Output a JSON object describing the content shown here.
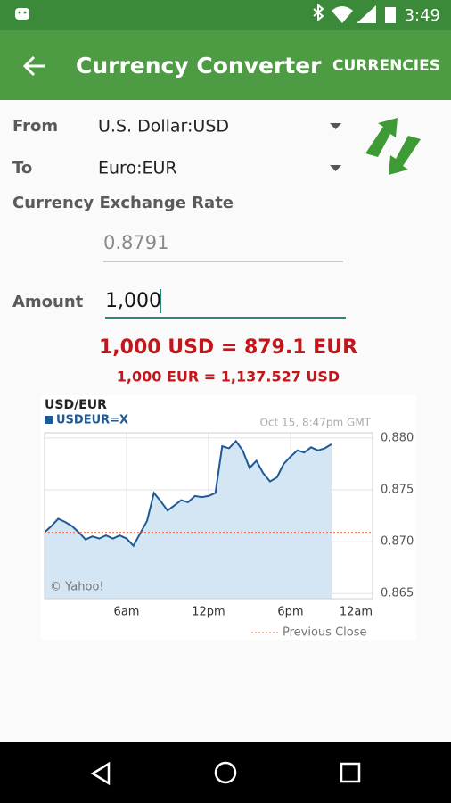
{
  "status_bar": {
    "time": "3:49"
  },
  "app_bar": {
    "title": "Currency Converter",
    "action": "CURRENCIES"
  },
  "form": {
    "from": {
      "label": "From",
      "value": "U.S. Dollar:USD"
    },
    "to": {
      "label": "To",
      "value": "Euro:EUR"
    },
    "rate_label": "Currency Exchange Rate",
    "rate_value": "0.8791",
    "amount_label": "Amount",
    "amount_value": "1,000"
  },
  "results": [
    "1,000 USD = 879.1 EUR",
    "1,000 EUR = 1,137.527 USD"
  ],
  "chart_data": {
    "type": "line",
    "title": "USD/EUR",
    "subtitle": "Oct 15, 8:47pm GMT",
    "annotation": "© Yahoo!",
    "x": [
      0,
      0.5,
      1,
      1.5,
      2,
      2.5,
      3,
      3.5,
      4,
      4.5,
      5,
      5.5,
      6,
      6.5,
      7,
      7.5,
      8,
      8.5,
      9,
      9.5,
      10,
      10.5,
      11,
      11.5,
      12,
      12.5,
      13,
      13.5,
      14,
      14.5,
      15,
      15.5,
      16,
      16.5,
      17,
      17.5,
      18,
      18.5,
      19,
      19.5,
      20,
      20.5,
      21
    ],
    "series": [
      {
        "name": "USDEUR=X",
        "color": "#1d5a96",
        "fill": "#d4e5f3",
        "values": [
          0.8709,
          0.8715,
          0.8722,
          0.8719,
          0.8715,
          0.8709,
          0.8702,
          0.8705,
          0.8703,
          0.8706,
          0.8703,
          0.8706,
          0.8703,
          0.8696,
          0.8708,
          0.872,
          0.8747,
          0.8739,
          0.873,
          0.8735,
          0.874,
          0.8738,
          0.8744,
          0.8743,
          0.8744,
          0.8747,
          0.8792,
          0.879,
          0.8797,
          0.8788,
          0.8771,
          0.8778,
          0.8766,
          0.8758,
          0.8762,
          0.8775,
          0.8782,
          0.8788,
          0.8786,
          0.8791,
          0.8788,
          0.879,
          0.8794
        ]
      }
    ],
    "reference_line": {
      "name": "Previous Close",
      "value": 0.8709,
      "color": "#e8703a"
    },
    "xlim": [
      0,
      24
    ],
    "xticks": [
      {
        "value": 6,
        "label": "6am"
      },
      {
        "value": 12,
        "label": "12pm"
      },
      {
        "value": 18,
        "label": "6pm"
      },
      {
        "value": 24,
        "label": "12am"
      }
    ],
    "ylim": [
      0.8645,
      0.8805
    ],
    "yticks": [
      {
        "value": 0.88,
        "label": "0.880"
      },
      0.875,
      {
        "value": 0.87,
        "label": "0.870"
      },
      0.865
    ],
    "grid": true
  }
}
